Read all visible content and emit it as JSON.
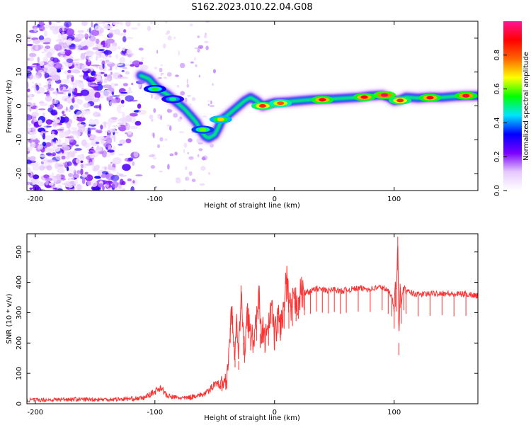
{
  "title": "S162.2023.010.22.04.G08",
  "chart_data": [
    {
      "type": "heatmap",
      "xlabel": "Height of straight line (km)",
      "ylabel": "Frequency (Hz)",
      "xlim": [
        -207,
        170
      ],
      "ylim": [
        -25,
        25
      ],
      "xticks": [
        -200,
        -100,
        0,
        100
      ],
      "yticks": [
        -20,
        -10,
        0,
        10,
        20
      ],
      "colorbar": {
        "label": "Normalized spectral amplitude",
        "range": [
          0,
          1
        ],
        "ticks": [
          "0.0",
          "0.2",
          "0.4",
          "0.6",
          "0.8"
        ],
        "colors": [
          "#ffffff",
          "#e6c8ff",
          "#7a00ff",
          "#0000ff",
          "#00e5ff",
          "#00ff00",
          "#ffff00",
          "#ff6600",
          "#ff0000",
          "#ff1493"
        ]
      },
      "ridge": {
        "x": [
          -112,
          -105,
          -100,
          -95,
          -90,
          -85,
          -80,
          -75,
          -70,
          -65,
          -62,
          -58,
          -55,
          -50,
          -47,
          -44,
          -40,
          -35,
          -30,
          -25,
          -20,
          -15,
          -10,
          -5,
          0,
          10,
          20,
          30,
          40,
          50,
          60,
          70,
          80,
          90,
          95,
          100,
          105,
          110,
          120,
          130,
          140,
          150,
          160,
          170
        ],
        "y": [
          9,
          8,
          6,
          4.5,
          3.5,
          2,
          0.5,
          -1,
          -3,
          -5,
          -7,
          -9,
          -9.5,
          -8.5,
          -6.5,
          -4,
          -3,
          -1.5,
          0,
          1.5,
          2.5,
          1.5,
          0,
          0.5,
          1,
          1.2,
          1.5,
          1.8,
          2,
          2.1,
          2.3,
          2.5,
          3.0,
          3.2,
          2.6,
          1.5,
          1.8,
          2.6,
          2.3,
          2.6,
          2.5,
          2.8,
          3.0,
          3.0
        ]
      },
      "peaks": [
        {
          "x": -100,
          "y": 5,
          "level": 0.55
        },
        {
          "x": -85,
          "y": 2,
          "level": 0.5
        },
        {
          "x": -60,
          "y": -7,
          "level": 0.6
        },
        {
          "x": -45,
          "y": -4,
          "level": 0.7
        },
        {
          "x": -10,
          "y": 0,
          "level": 0.85
        },
        {
          "x": 5,
          "y": 0.8,
          "level": 0.8
        },
        {
          "x": 40,
          "y": 1.8,
          "level": 0.9
        },
        {
          "x": 75,
          "y": 2.6,
          "level": 0.9
        },
        {
          "x": 92,
          "y": 3.2,
          "level": 0.95
        },
        {
          "x": 105,
          "y": 1.6,
          "level": 0.85
        },
        {
          "x": 130,
          "y": 2.4,
          "level": 0.9
        },
        {
          "x": 160,
          "y": 3.0,
          "level": 0.92
        }
      ],
      "noise_region": {
        "x": [
          -207,
          -105
        ],
        "y": [
          -25,
          25
        ]
      }
    },
    {
      "type": "line",
      "xlabel": "Height of straight line (km)",
      "ylabel": "SNR (10 * v/v)",
      "xlim": [
        -207,
        170
      ],
      "ylim": [
        0,
        560
      ],
      "xticks": [
        -200,
        -100,
        0,
        100
      ],
      "yticks": [
        0,
        100,
        200,
        300,
        400,
        500
      ],
      "color": "#ff3030",
      "series": [
        {
          "x": [
            -207,
            -190,
            -170,
            -150,
            -130,
            -110,
            -100,
            -95,
            -90,
            -85,
            -80,
            -75,
            -70,
            -65,
            -60,
            -55,
            -50,
            -45,
            -40,
            -37,
            -35,
            -33,
            -32,
            -30,
            -28,
            -26,
            -25,
            -23,
            -20,
            -18,
            -15,
            -13,
            -12,
            -10,
            -8,
            -5,
            -3,
            0,
            3,
            5,
            8,
            10,
            12,
            15,
            18,
            20,
            25,
            30,
            35,
            40,
            45,
            50,
            55,
            60,
            70,
            80,
            90,
            95,
            98,
            100,
            101,
            102,
            103,
            104,
            105,
            106,
            108,
            110,
            120,
            130,
            140,
            150,
            160,
            170
          ],
          "y": [
            12,
            13,
            15,
            14,
            15,
            18,
            40,
            55,
            25,
            22,
            20,
            18,
            22,
            28,
            30,
            40,
            70,
            60,
            80,
            250,
            290,
            150,
            270,
            140,
            390,
            200,
            170,
            320,
            220,
            210,
            260,
            390,
            230,
            250,
            210,
            240,
            330,
            220,
            290,
            260,
            310,
            420,
            310,
            320,
            340,
            350,
            365,
            370,
            380,
            375,
            372,
            378,
            370,
            375,
            380,
            378,
            385,
            370,
            360,
            310,
            400,
            380,
            550,
            200,
            395,
            330,
            385,
            370,
            360,
            362,
            365,
            360,
            362,
            356
          ]
        }
      ]
    }
  ]
}
